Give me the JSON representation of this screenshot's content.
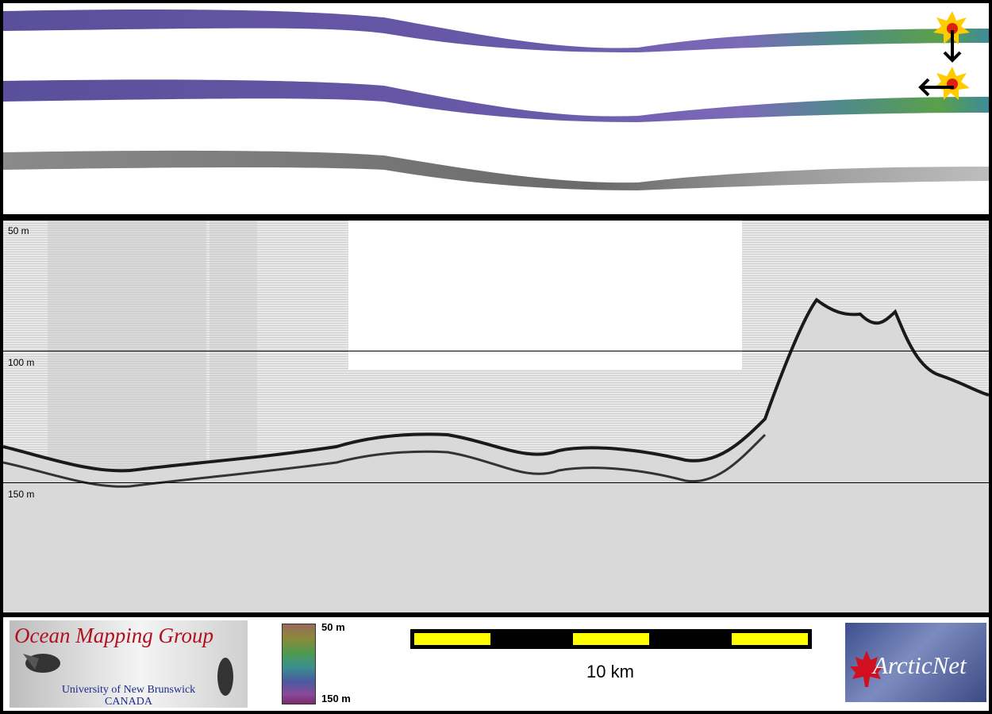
{
  "figure": {
    "depth_labels": [
      "50 m",
      "100 m",
      "150 m"
    ],
    "colorbar": {
      "top_label": "50 m",
      "bottom_label": "150 m"
    },
    "scalebar": {
      "label": "10 km"
    },
    "logos": {
      "ocean_mapping": {
        "title": "Ocean Mapping Group",
        "line1": "University of New Brunswick",
        "line2": "CANADA"
      },
      "arcticnet": {
        "text": "ArcticNet"
      }
    }
  },
  "colors": {
    "swath_multibeam_start": "#6a5aa0",
    "swath_multibeam_end": "#3f9a6a",
    "backscatter": "#8a8a8a",
    "scale_yellow": "#ffff00",
    "maple_red": "#d01020"
  }
}
